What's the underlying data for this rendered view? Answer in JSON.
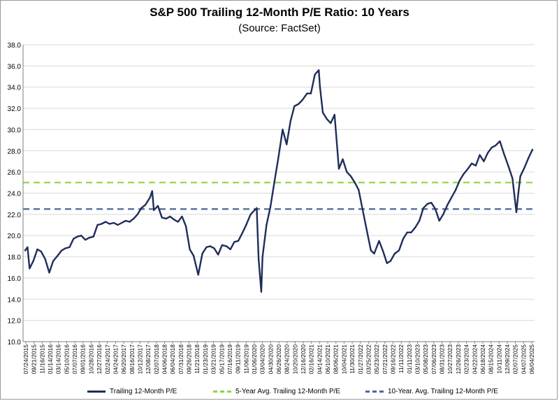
{
  "chart_data": {
    "type": "line",
    "title": "S&P 500 Trailing 12-Month P/E Ratio: 10 Years",
    "subtitle": "(Source: FactSet)",
    "xlabel": "",
    "ylabel": "",
    "ylim": [
      10,
      38
    ],
    "y_ticks": [
      "38.0",
      "36.0",
      "34.0",
      "32.0",
      "30.0",
      "28.0",
      "26.0",
      "24.0",
      "22.0",
      "20.0",
      "18.0",
      "16.0",
      "14.0",
      "12.0",
      "10.0"
    ],
    "x_tick_labels": [
      "07/24/2015",
      "09/21/2015",
      "11/16/2015",
      "01/14/2016",
      "03/14/2016",
      "05/10/2016",
      "07/07/2016",
      "09/01/2016",
      "10/28/2016",
      "12/27/2016",
      "02/24/2017",
      "04/24/2017",
      "06/20/2017",
      "08/16/2017",
      "10/12/2017",
      "12/08/2017",
      "02/07/2018",
      "04/06/2018",
      "06/04/2018",
      "07/31/2018",
      "09/26/2018",
      "11/21/2018",
      "01/23/2019",
      "03/21/2019",
      "05/17/2019",
      "07/16/2019",
      "09/11/2019",
      "11/06/2019",
      "01/06/2020",
      "03/04/2020",
      "04/30/2020",
      "06/26/2020",
      "08/24/2020",
      "10/20/2020",
      "12/16/2020",
      "02/16/2021",
      "04/14/2021",
      "06/10/2021",
      "08/06/2021",
      "10/04/2021",
      "11/30/2021",
      "01/27/2022",
      "03/25/2022",
      "05/23/2022",
      "07/21/2022",
      "09/16/2022",
      "11/11/2022",
      "01/11/2023",
      "03/10/2023",
      "05/08/2023",
      "07/06/2023",
      "08/31/2023",
      "10/27/2023",
      "12/26/2023",
      "02/23/2024",
      "04/22/2024",
      "06/18/2024",
      "08/15/2024",
      "10/11/2024",
      "12/09/2024",
      "02/07/2025",
      "04/07/2025",
      "06/04/2025"
    ],
    "grid": true,
    "legend_position": "bottom",
    "reference_lines": [
      {
        "name": "5-Year Avg. Trailing 12-Month P/E",
        "value": 25.0,
        "color": "#8ed63e"
      },
      {
        "name": "10-Year. Avg. Trailing 12-Month P/E",
        "value": 22.5,
        "color": "#4a6a99"
      }
    ],
    "series": [
      {
        "name": "Trailing 12-Month P/E",
        "color": "#1f2d5a",
        "x": [
          "07/24/2015",
          "08/10/2015",
          "08/25/2015",
          "09/21/2015",
          "10/20/2015",
          "11/16/2015",
          "12/15/2015",
          "01/14/2016",
          "02/11/2016",
          "03/14/2016",
          "04/12/2016",
          "05/10/2016",
          "06/08/2016",
          "07/07/2016",
          "08/03/2016",
          "09/01/2016",
          "09/30/2016",
          "10/28/2016",
          "11/28/2016",
          "12/27/2016",
          "01/25/2017",
          "02/24/2017",
          "03/24/2017",
          "04/24/2017",
          "05/22/2017",
          "06/20/2017",
          "07/19/2017",
          "08/16/2017",
          "09/14/2017",
          "10/12/2017",
          "11/09/2017",
          "12/08/2017",
          "01/10/2018",
          "01/26/2018",
          "02/07/2018",
          "03/08/2018",
          "04/06/2018",
          "05/07/2018",
          "06/04/2018",
          "07/03/2018",
          "07/31/2018",
          "08/29/2018",
          "09/26/2018",
          "10/24/2018",
          "11/21/2018",
          "12/24/2018",
          "01/23/2019",
          "02/21/2019",
          "03/21/2019",
          "04/18/2019",
          "05/17/2019",
          "06/14/2019",
          "07/16/2019",
          "08/13/2019",
          "09/11/2019",
          "10/09/2019",
          "11/06/2019",
          "12/05/2019",
          "01/06/2020",
          "02/04/2020",
          "02/19/2020",
          "03/04/2020",
          "03/23/2020",
          "04/01/2020",
          "04/30/2020",
          "05/28/2020",
          "06/26/2020",
          "07/24/2020",
          "08/24/2020",
          "09/22/2020",
          "10/20/2020",
          "11/17/2020",
          "12/16/2020",
          "01/15/2021",
          "02/16/2021",
          "03/16/2021",
          "04/14/2021",
          "05/12/2021",
          "05/20/2021",
          "06/10/2021",
          "07/09/2021",
          "08/06/2021",
          "09/03/2021",
          "10/04/2021",
          "11/01/2021",
          "11/30/2021",
          "12/29/2021",
          "01/27/2022",
          "02/24/2022",
          "03/25/2022",
          "04/22/2022",
          "05/23/2022",
          "06/16/2022",
          "07/21/2022",
          "08/17/2022",
          "09/16/2022",
          "10/12/2022",
          "11/11/2022",
          "12/12/2022",
          "01/11/2023",
          "02/09/2023",
          "03/10/2023",
          "04/10/2023",
          "05/08/2023",
          "06/06/2023",
          "07/06/2023",
          "08/03/2023",
          "08/31/2023",
          "09/29/2023",
          "10/27/2023",
          "11/27/2023",
          "12/26/2023",
          "01/25/2024",
          "02/23/2024",
          "03/22/2024",
          "04/22/2024",
          "05/20/2024",
          "06/18/2024",
          "07/17/2024",
          "08/15/2024",
          "09/13/2024",
          "10/11/2024",
          "11/08/2024",
          "12/09/2024",
          "01/08/2025",
          "02/07/2025",
          "03/10/2025",
          "04/07/2025",
          "04/21/2025",
          "05/06/2025",
          "06/04/2025",
          "07/03/2025",
          "08/01/2025"
        ],
        "values": [
          18.6,
          18.9,
          16.9,
          17.6,
          18.7,
          18.5,
          17.8,
          16.5,
          17.6,
          18.1,
          18.6,
          18.8,
          18.9,
          19.7,
          19.9,
          20.0,
          19.6,
          19.8,
          19.9,
          21.0,
          21.1,
          21.3,
          21.1,
          21.2,
          21.0,
          21.2,
          21.4,
          21.3,
          21.6,
          22.0,
          22.6,
          22.9,
          23.6,
          24.2,
          22.4,
          22.8,
          21.7,
          21.6,
          21.8,
          21.5,
          21.3,
          21.8,
          20.9,
          18.7,
          18.1,
          16.3,
          18.3,
          18.9,
          19.0,
          18.8,
          18.2,
          19.1,
          19.0,
          18.7,
          19.4,
          19.5,
          20.2,
          21.0,
          22.0,
          22.4,
          22.6,
          17.8,
          14.7,
          18.0,
          21.0,
          22.7,
          25.1,
          27.3,
          30.0,
          28.6,
          30.8,
          32.2,
          32.4,
          32.8,
          33.4,
          33.4,
          35.2,
          35.6,
          34.1,
          31.6,
          31.0,
          30.6,
          31.4,
          26.3,
          27.2,
          26.0,
          25.6,
          25.0,
          24.3,
          22.4,
          20.6,
          18.6,
          18.3,
          19.5,
          18.6,
          17.4,
          17.6,
          18.3,
          18.6,
          19.7,
          20.3,
          20.3,
          20.8,
          21.4,
          22.6,
          23.0,
          23.1,
          22.5,
          21.4,
          22.0,
          22.9,
          23.6,
          24.3,
          25.2,
          25.8,
          26.3,
          26.8,
          26.6,
          27.6,
          27.0,
          27.8,
          28.3,
          28.5,
          28.9,
          27.7,
          26.6,
          25.4,
          22.2,
          24.0,
          25.6,
          26.4,
          27.3,
          28.1
        ]
      }
    ]
  }
}
